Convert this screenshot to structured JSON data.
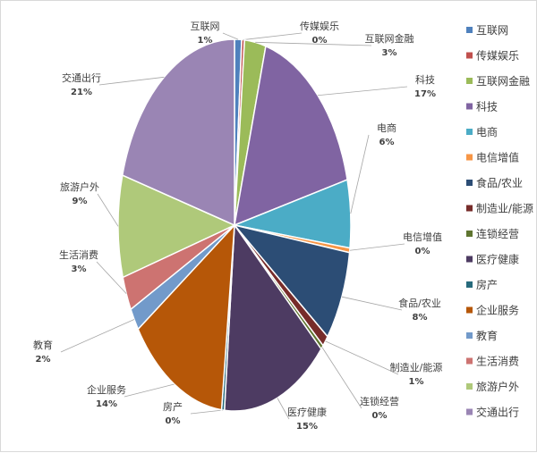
{
  "chart_data": {
    "type": "pie",
    "title": "",
    "legend_position": "right",
    "categories": [
      "互联网",
      "传媒娱乐",
      "互联网金融",
      "科技",
      "电商",
      "电信增值",
      "食品/农业",
      "制造业/能源",
      "连锁经营",
      "医疗健康",
      "房产",
      "企业服务",
      "教育",
      "生活消费",
      "旅游户外",
      "交通出行"
    ],
    "values": [
      1,
      0,
      3,
      17,
      6,
      0,
      8,
      1,
      0,
      15,
      0,
      14,
      2,
      3,
      9,
      21
    ],
    "labels": [
      "1%",
      "0%",
      "3%",
      "17%",
      "6%",
      "0%",
      "8%",
      "1%",
      "0%",
      "15%",
      "0%",
      "14%",
      "2%",
      "3%",
      "9%",
      "21%"
    ],
    "colors": [
      "#4F81BD",
      "#C0504D",
      "#9BBB59",
      "#8064A2",
      "#4BACC6",
      "#F79646",
      "#2C4D75",
      "#772C2A",
      "#5F7530",
      "#4D3B62",
      "#276A7C",
      "#B65708",
      "#729ACA",
      "#CD7371",
      "#AFC97A",
      "#9A85B4"
    ]
  }
}
